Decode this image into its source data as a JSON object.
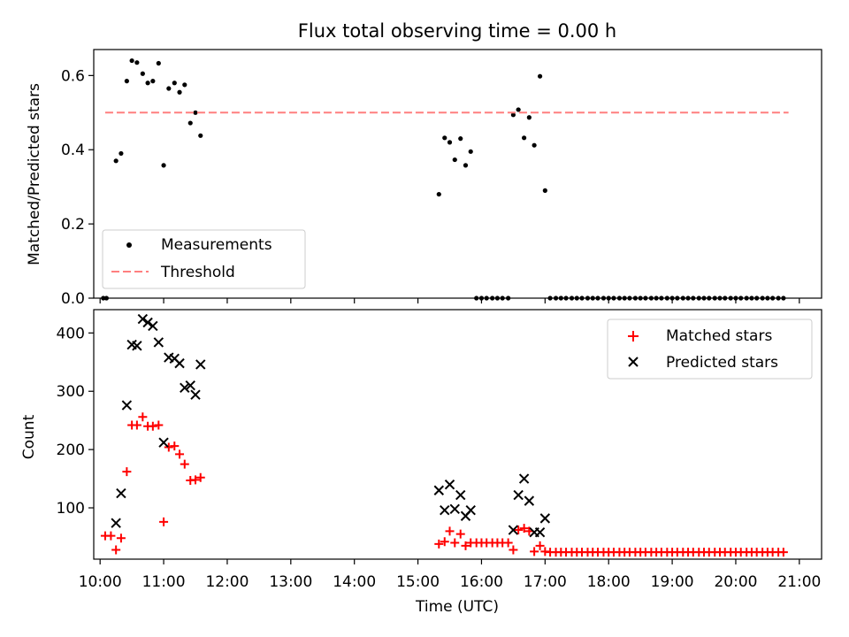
{
  "chart_data": [
    {
      "type": "scatter",
      "title": "Flux total observing time = 0.00 h",
      "ylabel": "Matched/Predicted stars",
      "xlabel": "",
      "ylim": [
        0,
        0.67
      ],
      "yticks": [
        0.0,
        0.2,
        0.4,
        0.6
      ],
      "ytick_labels": [
        "0.0",
        "0.2",
        "0.4",
        "0.6"
      ],
      "legend_position": "bottom-left",
      "series": [
        {
          "name": "Measurements",
          "marker": "dot",
          "color": "#000000",
          "points": [
            [
              10.05,
              0.0
            ],
            [
              10.1,
              0.0
            ],
            [
              10.25,
              0.37
            ],
            [
              10.33,
              0.39
            ],
            [
              10.42,
              0.585
            ],
            [
              10.5,
              0.64
            ],
            [
              10.58,
              0.635
            ],
            [
              10.67,
              0.605
            ],
            [
              10.75,
              0.58
            ],
            [
              10.83,
              0.585
            ],
            [
              10.92,
              0.633
            ],
            [
              11.0,
              0.358
            ],
            [
              11.08,
              0.565
            ],
            [
              11.17,
              0.58
            ],
            [
              11.25,
              0.555
            ],
            [
              11.33,
              0.575
            ],
            [
              11.42,
              0.472
            ],
            [
              11.5,
              0.5
            ],
            [
              11.58,
              0.438
            ],
            [
              15.33,
              0.28
            ],
            [
              15.42,
              0.432
            ],
            [
              15.5,
              0.42
            ],
            [
              15.58,
              0.373
            ],
            [
              15.67,
              0.43
            ],
            [
              15.75,
              0.358
            ],
            [
              15.83,
              0.395
            ],
            [
              15.92,
              0.0
            ],
            [
              16.0,
              0.0
            ],
            [
              16.08,
              0.0
            ],
            [
              16.17,
              0.0
            ],
            [
              16.25,
              0.0
            ],
            [
              16.33,
              0.0
            ],
            [
              16.42,
              0.0
            ],
            [
              16.5,
              0.494
            ],
            [
              16.58,
              0.508
            ],
            [
              16.67,
              0.432
            ],
            [
              16.75,
              0.487
            ],
            [
              16.83,
              0.412
            ],
            [
              16.92,
              0.598
            ],
            [
              17.0,
              0.29
            ],
            [
              17.08,
              0.0
            ],
            [
              17.17,
              0.0
            ],
            [
              17.25,
              0.0
            ],
            [
              17.33,
              0.0
            ],
            [
              17.42,
              0.0
            ],
            [
              17.5,
              0.0
            ],
            [
              17.58,
              0.0
            ],
            [
              17.67,
              0.0
            ],
            [
              17.75,
              0.0
            ],
            [
              17.83,
              0.0
            ],
            [
              17.92,
              0.0
            ],
            [
              18.0,
              0.0
            ],
            [
              18.08,
              0.0
            ],
            [
              18.17,
              0.0
            ],
            [
              18.25,
              0.0
            ],
            [
              18.33,
              0.0
            ],
            [
              18.42,
              0.0
            ],
            [
              18.5,
              0.0
            ],
            [
              18.58,
              0.0
            ],
            [
              18.67,
              0.0
            ],
            [
              18.75,
              0.0
            ],
            [
              18.83,
              0.0
            ],
            [
              18.92,
              0.0
            ],
            [
              19.0,
              0.0
            ],
            [
              19.08,
              0.0
            ],
            [
              19.17,
              0.0
            ],
            [
              19.25,
              0.0
            ],
            [
              19.33,
              0.0
            ],
            [
              19.42,
              0.0
            ],
            [
              19.5,
              0.0
            ],
            [
              19.58,
              0.0
            ],
            [
              19.67,
              0.0
            ],
            [
              19.75,
              0.0
            ],
            [
              19.83,
              0.0
            ],
            [
              19.92,
              0.0
            ],
            [
              20.0,
              0.0
            ],
            [
              20.08,
              0.0
            ],
            [
              20.17,
              0.0
            ],
            [
              20.25,
              0.0
            ],
            [
              20.33,
              0.0
            ],
            [
              20.42,
              0.0
            ],
            [
              20.5,
              0.0
            ],
            [
              20.58,
              0.0
            ],
            [
              20.67,
              0.0
            ],
            [
              20.75,
              0.0
            ]
          ]
        },
        {
          "name": "Threshold",
          "marker": "dashed-line",
          "color": "#ff7f7f",
          "points": [
            [
              10.08,
              0.5
            ],
            [
              20.83,
              0.5
            ]
          ]
        }
      ]
    },
    {
      "type": "scatter",
      "title": "",
      "ylabel": "Count",
      "xlabel": "Time (UTC)",
      "ylim": [
        12,
        440
      ],
      "yticks": [
        100,
        200,
        300,
        400
      ],
      "ytick_labels": [
        "100",
        "200",
        "300",
        "400"
      ],
      "legend_position": "top-right",
      "series": [
        {
          "name": "Matched stars",
          "marker": "plus",
          "color": "#ff0000",
          "points": [
            [
              10.08,
              52
            ],
            [
              10.17,
              52
            ],
            [
              10.25,
              28
            ],
            [
              10.33,
              48
            ],
            [
              10.42,
              162
            ],
            [
              10.5,
              242
            ],
            [
              10.58,
              242
            ],
            [
              10.67,
              256
            ],
            [
              10.75,
              240
            ],
            [
              10.83,
              240
            ],
            [
              10.92,
              242
            ],
            [
              11.0,
              76
            ],
            [
              11.08,
              204
            ],
            [
              11.17,
              206
            ],
            [
              11.25,
              192
            ],
            [
              11.33,
              175
            ],
            [
              11.42,
              147
            ],
            [
              11.5,
              148
            ],
            [
              11.58,
              152
            ],
            [
              15.33,
              38
            ],
            [
              15.42,
              42
            ],
            [
              15.5,
              60
            ],
            [
              15.58,
              40
            ],
            [
              15.67,
              55
            ],
            [
              15.75,
              35
            ],
            [
              15.83,
              40
            ],
            [
              15.92,
              40
            ],
            [
              16.0,
              40
            ],
            [
              16.08,
              40
            ],
            [
              16.17,
              40
            ],
            [
              16.25,
              40
            ],
            [
              16.33,
              40
            ],
            [
              16.42,
              40
            ],
            [
              16.5,
              28
            ],
            [
              16.58,
              62
            ],
            [
              16.67,
              65
            ],
            [
              16.75,
              60
            ],
            [
              16.83,
              25
            ],
            [
              16.92,
              35
            ],
            [
              17.0,
              25
            ],
            [
              17.08,
              24
            ],
            [
              17.17,
              24
            ],
            [
              17.25,
              24
            ],
            [
              17.33,
              24
            ],
            [
              17.42,
              24
            ],
            [
              17.5,
              24
            ],
            [
              17.58,
              24
            ],
            [
              17.67,
              24
            ],
            [
              17.75,
              24
            ],
            [
              17.83,
              24
            ],
            [
              17.92,
              24
            ],
            [
              18.0,
              24
            ],
            [
              18.08,
              24
            ],
            [
              18.17,
              24
            ],
            [
              18.25,
              24
            ],
            [
              18.33,
              24
            ],
            [
              18.42,
              24
            ],
            [
              18.5,
              24
            ],
            [
              18.58,
              24
            ],
            [
              18.67,
              24
            ],
            [
              18.75,
              24
            ],
            [
              18.83,
              24
            ],
            [
              18.92,
              24
            ],
            [
              19.0,
              24
            ],
            [
              19.08,
              24
            ],
            [
              19.17,
              24
            ],
            [
              19.25,
              24
            ],
            [
              19.33,
              24
            ],
            [
              19.42,
              24
            ],
            [
              19.5,
              24
            ],
            [
              19.58,
              24
            ],
            [
              19.67,
              24
            ],
            [
              19.75,
              24
            ],
            [
              19.83,
              24
            ],
            [
              19.92,
              24
            ],
            [
              20.0,
              24
            ],
            [
              20.08,
              24
            ],
            [
              20.17,
              24
            ],
            [
              20.25,
              24
            ],
            [
              20.33,
              24
            ],
            [
              20.42,
              24
            ],
            [
              20.5,
              24
            ],
            [
              20.58,
              24
            ],
            [
              20.67,
              24
            ],
            [
              20.75,
              24
            ]
          ]
        },
        {
          "name": "Predicted stars",
          "marker": "cross",
          "color": "#000000",
          "points": [
            [
              10.25,
              74
            ],
            [
              10.33,
              125
            ],
            [
              10.42,
              276
            ],
            [
              10.5,
              380
            ],
            [
              10.58,
              378
            ],
            [
              10.67,
              424
            ],
            [
              10.75,
              418
            ],
            [
              10.83,
              412
            ],
            [
              10.92,
              384
            ],
            [
              11.0,
              212
            ],
            [
              11.08,
              358
            ],
            [
              11.17,
              356
            ],
            [
              11.25,
              348
            ],
            [
              11.33,
              306
            ],
            [
              11.42,
              310
            ],
            [
              11.5,
              294
            ],
            [
              11.58,
              346
            ],
            [
              15.33,
              130
            ],
            [
              15.42,
              96
            ],
            [
              15.5,
              140
            ],
            [
              15.58,
              98
            ],
            [
              15.67,
              122
            ],
            [
              15.75,
              86
            ],
            [
              15.83,
              96
            ],
            [
              16.5,
              62
            ],
            [
              16.58,
              122
            ],
            [
              16.67,
              150
            ],
            [
              16.75,
              112
            ],
            [
              16.83,
              58
            ],
            [
              16.92,
              58
            ],
            [
              17.0,
              82
            ]
          ]
        }
      ]
    }
  ],
  "x_axis": {
    "label": "Time (UTC)",
    "range": [
      9.9,
      21.35
    ],
    "ticks": [
      10,
      11,
      12,
      13,
      14,
      15,
      16,
      17,
      18,
      19,
      20,
      21
    ],
    "tick_labels": [
      "10:00",
      "11:00",
      "12:00",
      "13:00",
      "14:00",
      "15:00",
      "16:00",
      "17:00",
      "18:00",
      "19:00",
      "20:00",
      "21:00"
    ]
  },
  "legend_top": {
    "measurements_label": "Measurements",
    "threshold_label": "Threshold"
  },
  "legend_bottom": {
    "matched_label": "Matched stars",
    "predicted_label": "Predicted stars"
  }
}
